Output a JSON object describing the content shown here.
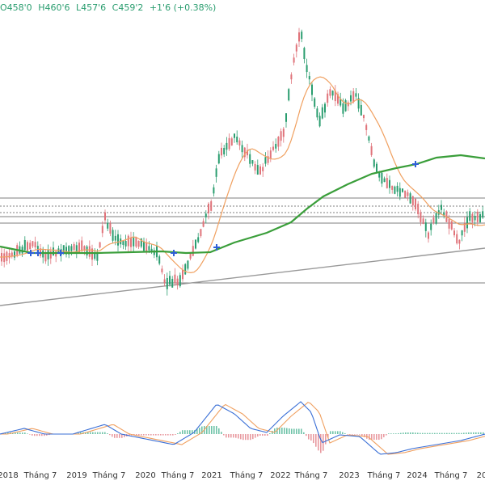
{
  "header": {
    "open": "O458'0",
    "high": "H460'6",
    "low": "L457'6",
    "close": "C459'2",
    "change": "+1'6 (+0.38%)"
  },
  "colors": {
    "up": "#2a9d6f",
    "down": "#e0737a",
    "ma_orange": "#f0a060",
    "ma_green": "#3a9e3a",
    "trendline": "#999999",
    "hline": "#555555",
    "macd_blue": "#3a6fd6",
    "macd_orange": "#f0a060",
    "cross_marker": "#2f5fd6"
  },
  "chart_data": {
    "type": "candlestick",
    "x_ticks": [
      "2018",
      "Tháng 7",
      "2019",
      "Tháng 7",
      "2020",
      "Tháng 7",
      "2021",
      "Tháng 7",
      "2022",
      "Tháng 7",
      "2023",
      "Tháng 7",
      "2024",
      "Tháng 7",
      "20"
    ],
    "indicators": [
      "moving-average-orange",
      "moving-average-green",
      "trendline",
      "horizontal-levels",
      "macd"
    ]
  }
}
